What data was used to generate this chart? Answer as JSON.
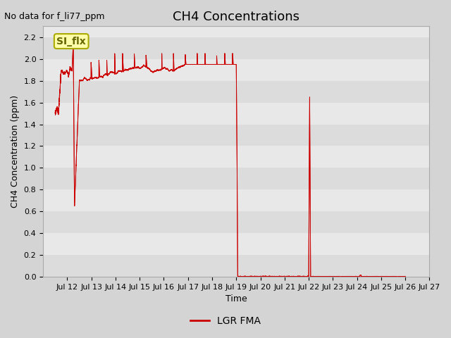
{
  "title": "CH4 Concentrations",
  "ylabel": "CH4 Concentration (ppm)",
  "xlabel": "Time",
  "no_data_label": "No data for f_li77_ppm",
  "legend_label": "LGR FMA",
  "si_flx_label": "SI_flx",
  "ylim": [
    0.0,
    2.3
  ],
  "yticks": [
    0.0,
    0.2,
    0.4,
    0.6,
    0.8,
    1.0,
    1.2,
    1.4,
    1.6,
    1.8,
    2.0,
    2.2
  ],
  "xlim": [
    1,
    17
  ],
  "xtick_days": [
    12,
    13,
    14,
    15,
    16,
    17,
    18,
    19,
    20,
    21,
    22,
    23,
    24,
    25,
    26,
    27
  ],
  "line_color": "#cc0000",
  "fig_bg_color": "#d4d4d4",
  "plot_bg_color": "#e8e8e8",
  "grid_color": "#ffffff",
  "title_fontsize": 13,
  "axis_label_fontsize": 9,
  "tick_fontsize": 8,
  "nodata_fontsize": 9,
  "siflx_fontsize": 10
}
